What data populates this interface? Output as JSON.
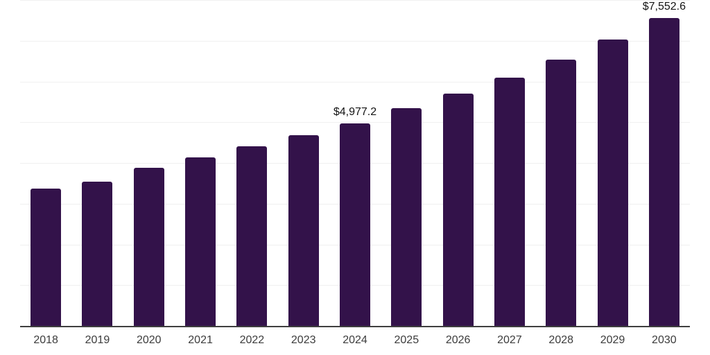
{
  "chart_data": {
    "type": "bar",
    "categories": [
      "2018",
      "2019",
      "2020",
      "2021",
      "2022",
      "2023",
      "2024",
      "2025",
      "2026",
      "2027",
      "2028",
      "2029",
      "2030"
    ],
    "values": [
      3373,
      3549,
      3885,
      4141,
      4414,
      4675,
      4977.2,
      5341,
      5699,
      6097,
      6541,
      7036,
      7552.6
    ],
    "annotations": [
      {
        "category": "2024",
        "text": "$4,977.2"
      },
      {
        "category": "2030",
        "text": "$7,552.6"
      }
    ],
    "title": "",
    "xlabel": "",
    "ylabel": "",
    "ylim": [
      0,
      8000
    ],
    "gridline_step": 1000,
    "grid": true,
    "legend": false,
    "y_tick_labels_visible": false,
    "bar_color": "#33124a",
    "gridline_color": "#f0f0f0",
    "axis_line_color": "#3f3f3f",
    "value_label_color": "#141414",
    "tick_label_color": "#3c3c3c",
    "background_color": "#ffffff"
  }
}
